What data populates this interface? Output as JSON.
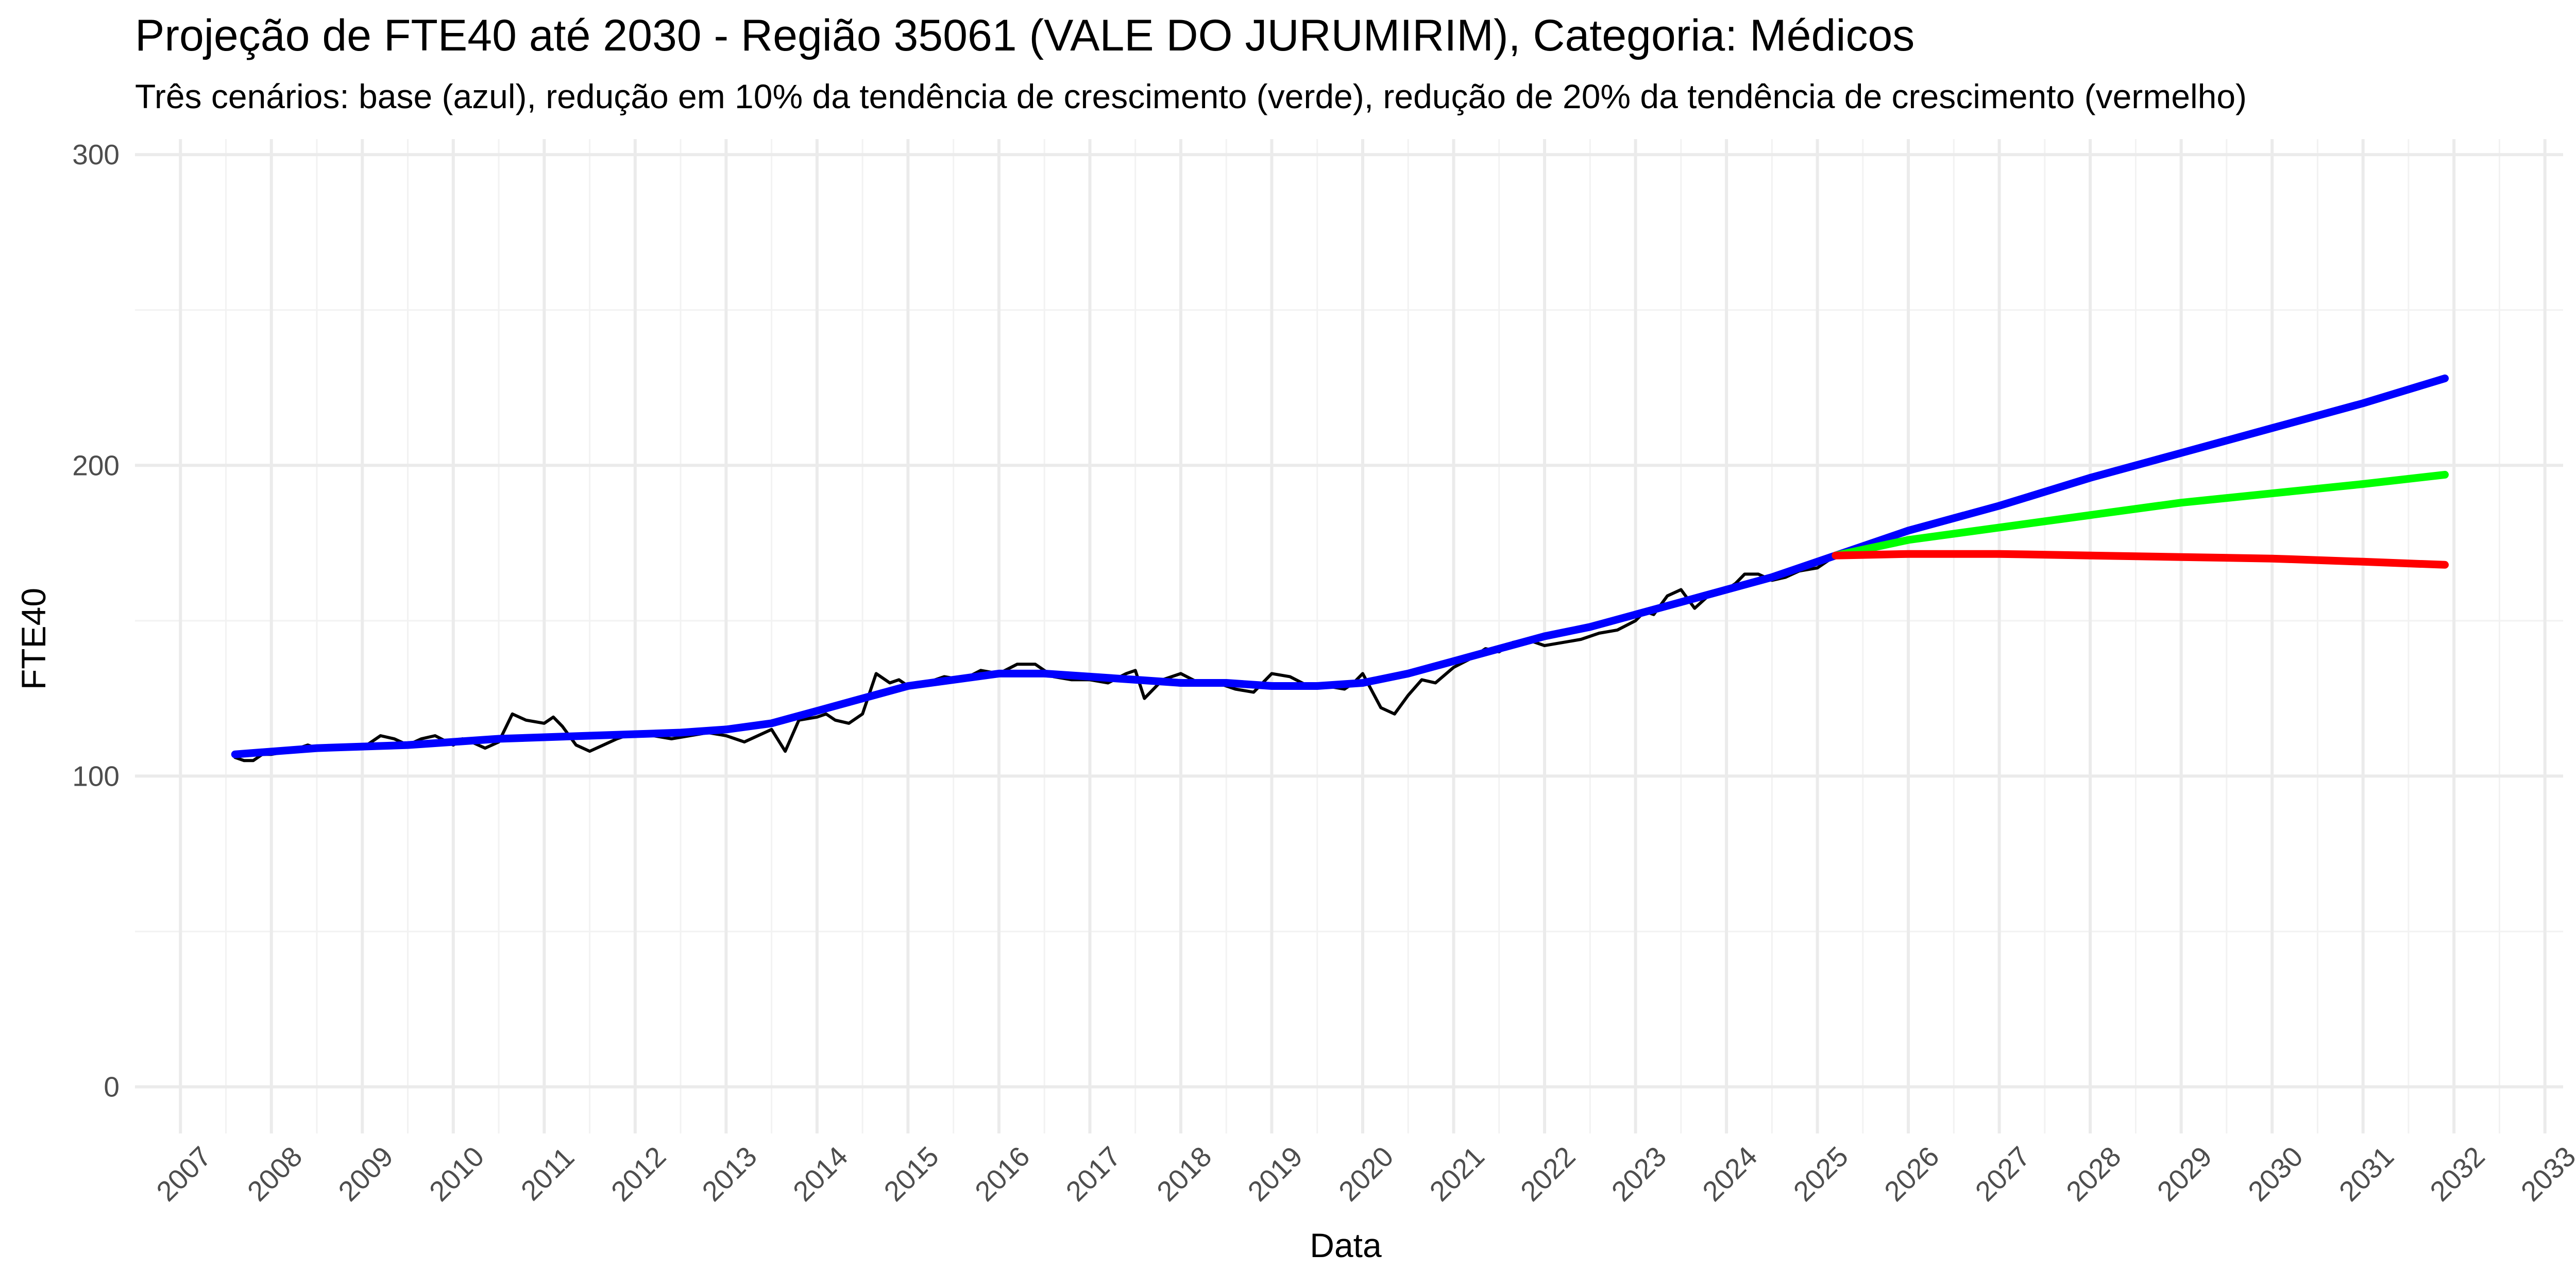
{
  "chart_data": {
    "type": "line",
    "title": "Projeção de FTE40 até 2030 - Região 35061 (VALE DO JURUMIRIM), Categoria: Médicos",
    "subtitle": "Três cenários: base (azul), redução em 10% da tendência de crescimento (verde), redução de 20% da tendência de crescimento (vermelho)",
    "xlabel": "Data",
    "ylabel": "FTE40",
    "xlim": [
      2006.5,
      2033.2
    ],
    "ylim": [
      -15,
      305
    ],
    "y_ticks": [
      0,
      100,
      200,
      300
    ],
    "x_ticks": [
      2007,
      2008,
      2009,
      2010,
      2011,
      2012,
      2013,
      2014,
      2015,
      2016,
      2017,
      2018,
      2019,
      2020,
      2021,
      2022,
      2023,
      2024,
      2025,
      2026,
      2027,
      2028,
      2029,
      2030,
      2031,
      2032,
      2033
    ],
    "x_tick_labels": [
      "2007",
      "2008",
      "2009",
      "2010",
      "2011",
      "2012",
      "2013",
      "2014",
      "2015",
      "2016",
      "2017",
      "2018",
      "2019",
      "2020",
      "2021",
      "2022",
      "2023",
      "2024",
      "2025",
      "2026",
      "2027",
      "2028",
      "2029",
      "2030",
      "2031",
      "2032",
      "2033"
    ],
    "grid": true,
    "legend": "none",
    "series": [
      {
        "color": "#000000",
        "x": [
          2007.6,
          2007.7,
          2007.8,
          2007.9,
          2008.0,
          2008.2,
          2008.4,
          2008.5,
          2008.6,
          2008.8,
          2009.0,
          2009.2,
          2009.35,
          2009.5,
          2009.65,
          2009.8,
          2010.0,
          2010.1,
          2010.2,
          2010.35,
          2010.5,
          2010.65,
          2010.8,
          2011.0,
          2011.1,
          2011.2,
          2011.35,
          2011.5,
          2011.65,
          2011.8,
          2012.0,
          2012.2,
          2012.4,
          2012.6,
          2012.8,
          2013.0,
          2013.1,
          2013.2,
          2013.35,
          2013.5,
          2013.65,
          2013.8,
          2014.0,
          2014.1,
          2014.2,
          2014.35,
          2014.5,
          2014.65,
          2014.8,
          2014.9,
          2015.0,
          2015.2,
          2015.4,
          2015.6,
          2015.8,
          2016.0,
          2016.2,
          2016.4,
          2016.6,
          2016.8,
          2017.0,
          2017.2,
          2017.4,
          2017.5,
          2017.6,
          2017.8,
          2018.0,
          2018.2,
          2018.4,
          2018.6,
          2018.8,
          2019.0,
          2019.2,
          2019.4,
          2019.6,
          2019.8,
          2019.9,
          2020.0,
          2020.2,
          2020.35,
          2020.5,
          2020.65,
          2020.8,
          2021.0,
          2021.2,
          2021.35,
          2021.5,
          2021.65,
          2021.8,
          2022.0,
          2022.2,
          2022.4,
          2022.6,
          2022.8,
          2023.0,
          2023.1,
          2023.2,
          2023.35,
          2023.5,
          2023.65,
          2023.8,
          2024.0,
          2024.1,
          2024.2,
          2024.35,
          2024.5,
          2024.65,
          2024.8,
          2025.0,
          2025.2
        ],
        "y": [
          106,
          105,
          105,
          107,
          107,
          108,
          110,
          109,
          109,
          110,
          109,
          113,
          112,
          110,
          112,
          113,
          110,
          112,
          111,
          109,
          111,
          120,
          118,
          117,
          119,
          116,
          110,
          108,
          110,
          112,
          114,
          113,
          112,
          113,
          114,
          113,
          112,
          111,
          113,
          115,
          108,
          118,
          119,
          120,
          118,
          117,
          120,
          133,
          130,
          131,
          129,
          130,
          132,
          131,
          134,
          133,
          136,
          136,
          132,
          131,
          131,
          130,
          133,
          134,
          125,
          131,
          133,
          130,
          130,
          128,
          127,
          133,
          132,
          129,
          129,
          128,
          130,
          133,
          122,
          120,
          126,
          131,
          130,
          135,
          138,
          141,
          140,
          143,
          144,
          142,
          143,
          144,
          146,
          147,
          150,
          153,
          152,
          158,
          160,
          154,
          158,
          160,
          162,
          165,
          165,
          163,
          164,
          166,
          167,
          171
        ]
      },
      {
        "color": "#0000ff",
        "x": [
          2007.6,
          2008.5,
          2009.5,
          2010.5,
          2011.5,
          2012.5,
          2013.0,
          2013.5,
          2014.0,
          2014.5,
          2015.0,
          2015.5,
          2016.0,
          2016.5,
          2017.0,
          2017.5,
          2018.0,
          2018.5,
          2019.0,
          2019.5,
          2020.0,
          2020.5,
          2021.0,
          2021.5,
          2022.0,
          2022.5,
          2023.0,
          2023.5,
          2024.0,
          2024.5,
          2025.2,
          2026.0,
          2027.0,
          2028.0,
          2029.0,
          2030.0,
          2031.0,
          2031.9
        ],
        "y": [
          107,
          109,
          110,
          112,
          113,
          114,
          115,
          117,
          121,
          125,
          129,
          131,
          133,
          133,
          132,
          131,
          130,
          130,
          129,
          129,
          130,
          133,
          137,
          141,
          145,
          148,
          152,
          156,
          160,
          164,
          171,
          179,
          187,
          196,
          204,
          212,
          220,
          228
        ]
      },
      {
        "color": "#00ff00",
        "x": [
          2025.2,
          2026.0,
          2027.0,
          2028.0,
          2029.0,
          2030.0,
          2031.0,
          2031.9
        ],
        "y": [
          171,
          176,
          180,
          184,
          188,
          191,
          194,
          197
        ]
      },
      {
        "color": "#ff0000",
        "x": [
          2025.2,
          2026.0,
          2027.0,
          2028.0,
          2029.0,
          2030.0,
          2031.0,
          2031.9
        ],
        "y": [
          171,
          171.5,
          171.5,
          171,
          170.5,
          170,
          169,
          168
        ]
      }
    ]
  }
}
